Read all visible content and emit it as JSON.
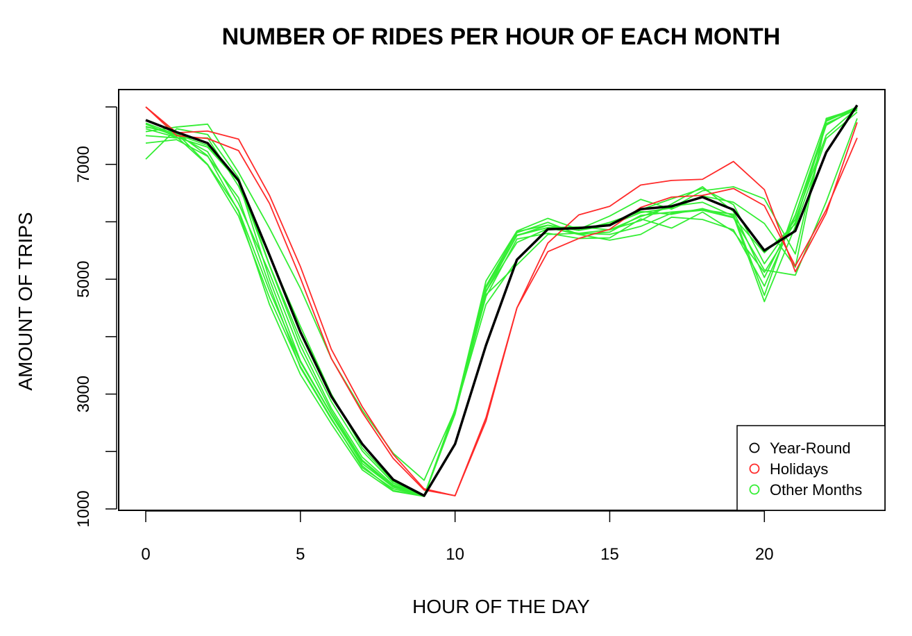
{
  "chart_data": {
    "type": "line",
    "title": "NUMBER OF RIDES PER HOUR OF EACH MONTH",
    "xlabel": "HOUR OF THE DAY",
    "ylabel": "AMOUNT OF TRIPS",
    "xlim": [
      0,
      23
    ],
    "ylim": [
      1000,
      8000
    ],
    "x": [
      0,
      1,
      2,
      3,
      4,
      5,
      6,
      7,
      8,
      9,
      10,
      11,
      12,
      13,
      14,
      15,
      16,
      17,
      18,
      19,
      20,
      21,
      22,
      23
    ],
    "x_ticks": [
      0,
      5,
      10,
      15,
      20
    ],
    "y_ticks": [
      1000,
      3000,
      5000,
      7000
    ],
    "y_ticks_minor": [
      2000,
      4000,
      6000,
      8000
    ],
    "grid": false,
    "legend_position": "bottom-right",
    "colors": {
      "year_round": "#000000",
      "holidays": "#ff2a2a",
      "other_months": "#33ee33"
    },
    "legend": [
      {
        "label": "Year-Round",
        "color": "#000000"
      },
      {
        "label": "Holidays",
        "color": "#ff2a2a"
      },
      {
        "label": "Other Months",
        "color": "#33ee33"
      }
    ],
    "series": [
      {
        "group": "Holidays",
        "color": "#ff2a2a",
        "values": [
          8000,
          7550,
          7580,
          7440,
          6460,
          5220,
          3780,
          2780,
          1950,
          1350,
          1230,
          2530,
          4500,
          5480,
          5710,
          5870,
          6250,
          6430,
          6460,
          6580,
          6280,
          5230,
          6210,
          7460
        ]
      },
      {
        "group": "Holidays",
        "color": "#ff2a2a",
        "values": [
          8000,
          7500,
          7450,
          7240,
          6320,
          5020,
          3620,
          2680,
          1880,
          1330,
          1230,
          2590,
          4500,
          5630,
          6120,
          6270,
          6640,
          6720,
          6740,
          7050,
          6560,
          5130,
          6150,
          7730
        ]
      },
      {
        "group": "Other Months",
        "color": "#33ee33",
        "values": [
          7570,
          7650,
          7700,
          6860,
          5890,
          4840,
          3620,
          2720,
          1970,
          1500,
          2720,
          4970,
          5840,
          6060,
          5870,
          6100,
          6390,
          6220,
          6450,
          6340,
          5970,
          5210,
          7800,
          7970
        ]
      },
      {
        "group": "Other Months",
        "color": "#33ee33",
        "values": [
          7500,
          7460,
          7460,
          6620,
          5400,
          4180,
          3000,
          2060,
          1480,
          1220,
          2660,
          4880,
          5810,
          5990,
          5780,
          5680,
          5780,
          6080,
          6040,
          5860,
          4880,
          6110,
          7680,
          7990
        ]
      },
      {
        "group": "Other Months",
        "color": "#33ee33",
        "values": [
          7620,
          7470,
          7300,
          6700,
          5000,
          3580,
          2650,
          1830,
          1380,
          1230,
          2690,
          4790,
          5760,
          5940,
          5850,
          5940,
          6160,
          6240,
          6540,
          6610,
          6400,
          5440,
          7770,
          8000
        ]
      },
      {
        "group": "Other Months",
        "color": "#33ee33",
        "values": [
          7720,
          7520,
          7330,
          6700,
          5240,
          3850,
          2750,
          1900,
          1420,
          1230,
          2650,
          4780,
          5770,
          5900,
          5910,
          5860,
          6020,
          6310,
          6610,
          6180,
          5030,
          6120,
          7710,
          7960
        ]
      },
      {
        "group": "Other Months",
        "color": "#33ee33",
        "values": [
          7370,
          7430,
          7140,
          6420,
          4890,
          3460,
          2560,
          1750,
          1320,
          1220,
          2700,
          4700,
          5700,
          5800,
          5710,
          5720,
          6050,
          5890,
          6170,
          5830,
          5120,
          5990,
          7690,
          7980
        ]
      },
      {
        "group": "Other Months",
        "color": "#33ee33",
        "values": [
          7660,
          7510,
          7220,
          6320,
          5110,
          3740,
          2700,
          1850,
          1400,
          1220,
          2710,
          4880,
          5830,
          5940,
          5850,
          5990,
          6180,
          6130,
          6230,
          6080,
          5460,
          5960,
          7750,
          7990
        ]
      },
      {
        "group": "Other Months",
        "color": "#33ee33",
        "values": [
          7090,
          7620,
          7520,
          6770,
          5250,
          3950,
          2870,
          2010,
          1450,
          1230,
          2730,
          4850,
          5760,
          5900,
          5780,
          5820,
          6110,
          6170,
          6210,
          6130,
          4720,
          6260,
          7780,
          7940
        ]
      },
      {
        "group": "Other Months",
        "color": "#33ee33",
        "values": [
          7650,
          7550,
          7150,
          6180,
          4560,
          3340,
          2480,
          1680,
          1310,
          1220,
          2740,
          4790,
          5640,
          5880,
          5880,
          5960,
          6210,
          6400,
          6580,
          6300,
          5270,
          6040,
          7510,
          7980
        ]
      },
      {
        "group": "Other Months",
        "color": "#33ee33",
        "values": [
          7700,
          7480,
          6990,
          6100,
          4680,
          3480,
          2580,
          1720,
          1350,
          1230,
          2720,
          4730,
          5250,
          5780,
          5800,
          5860,
          6090,
          6270,
          6340,
          6100,
          4610,
          5920,
          7450,
          7910
        ]
      },
      {
        "group": "Other Months",
        "color": "#33ee33",
        "values": [
          8000,
          7540,
          7000,
          6200,
          4800,
          3560,
          2640,
          1790,
          1380,
          1230,
          2700,
          4560,
          5330,
          5890,
          5800,
          5780,
          5920,
          6150,
          6200,
          6070,
          5160,
          5070,
          6350,
          7800
        ]
      },
      {
        "group": "Year-Round",
        "color": "#000000",
        "values": [
          7770,
          7560,
          7370,
          6720,
          5420,
          4080,
          2960,
          2130,
          1510,
          1230,
          2130,
          3850,
          5340,
          5870,
          5890,
          5940,
          6220,
          6270,
          6430,
          6210,
          5500,
          5840,
          7210,
          8030
        ]
      }
    ]
  }
}
